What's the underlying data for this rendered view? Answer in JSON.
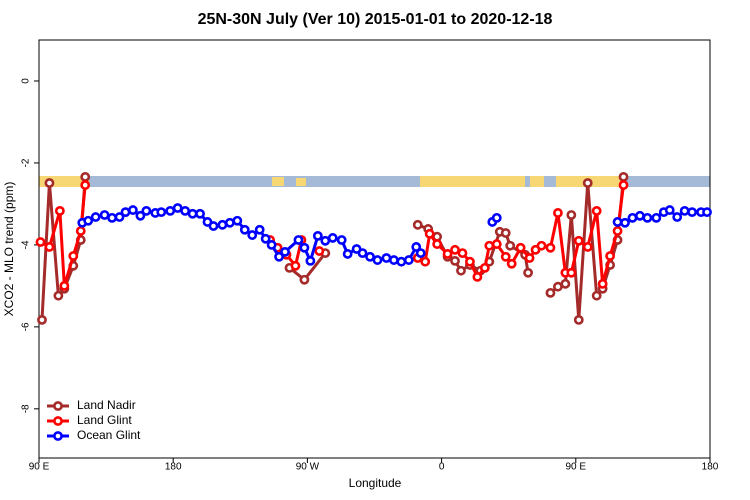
{
  "chart_data": {
    "type": "line",
    "title": "25N-30N July (Ver 10)   2015-01-01 to 2020-12-18",
    "x_label": "Longitude",
    "y_label": "XCO2 - MLO trend (ppm)",
    "xlim": [
      90,
      540
    ],
    "ylim": [
      -9.2,
      1
    ],
    "xticks": [
      {
        "value": 90,
        "label": "90 E"
      },
      180,
      {
        "value": 270,
        "label": "90 W"
      },
      {
        "value": 360,
        "label": "0"
      },
      {
        "value": 450,
        "label": "90 E"
      },
      {
        "value": 540,
        "label": "180"
      }
    ],
    "yticks": [
      0,
      -2,
      -4,
      -6,
      -8
    ],
    "legend": "bottom-left",
    "series": [
      {
        "name": "Land Nadir",
        "color": "#a52a2a",
        "x": [
          92,
          97,
          103,
          107,
          113,
          118,
          121,
          null,
          258,
          268,
          282,
          null,
          344,
          351,
          357,
          364,
          369,
          373,
          379,
          386,
          392,
          399,
          403,
          406,
          416,
          418,
          null,
          433,
          438,
          443,
          447,
          452,
          458,
          464,
          468,
          473,
          478,
          482
        ],
        "values": [
          -5.83,
          -2.49,
          -5.24,
          -5.07,
          -4.51,
          -3.88,
          -2.34,
          null,
          -4.56,
          -4.85,
          -4.2,
          null,
          -3.51,
          -3.61,
          -3.8,
          -4.29,
          -4.39,
          -4.63,
          -4.49,
          -4.63,
          -4.41,
          -3.68,
          -3.71,
          -4.02,
          -4.24,
          -4.68,
          null,
          -5.17,
          -5.02,
          -4.95,
          -3.27,
          -5.83,
          -2.49,
          -5.24,
          -5.07,
          -4.49,
          -3.88,
          -2.34
        ]
      },
      {
        "name": "Land Glint",
        "color": "#ff0000",
        "x": [
          91,
          97,
          104,
          107,
          113,
          118,
          121,
          null,
          245,
          250,
          256,
          262,
          266,
          null,
          278,
          null,
          344,
          349,
          352,
          357,
          364,
          369,
          374,
          379,
          384,
          389,
          392,
          397,
          403,
          407,
          413,
          419,
          423,
          427,
          433,
          438,
          443,
          447,
          452,
          458,
          464,
          468,
          473,
          478,
          482
        ],
        "values": [
          -3.93,
          -4.05,
          -3.17,
          -5.0,
          -4.27,
          -3.66,
          -2.54,
          null,
          -3.88,
          -4.07,
          -4.24,
          -4.51,
          -3.88,
          null,
          -4.15,
          null,
          -4.32,
          -4.41,
          -3.73,
          -3.98,
          -4.22,
          -4.12,
          -4.2,
          -4.41,
          -4.78,
          -4.56,
          -4.02,
          -3.98,
          -4.29,
          -4.46,
          -4.07,
          -4.32,
          -4.12,
          -4.02,
          -4.07,
          -3.22,
          -4.68,
          -4.68,
          -3.9,
          -4.05,
          -3.17,
          -4.95,
          -4.27,
          -3.66,
          -2.54
        ]
      },
      {
        "name": "Ocean Glint",
        "color": "#0000ff",
        "x": [
          119,
          123,
          128,
          134,
          139,
          144,
          148,
          153,
          158,
          162,
          168,
          172,
          178,
          183,
          188,
          193,
          198,
          203,
          207,
          213,
          218,
          223,
          228,
          233,
          238,
          242,
          246,
          251,
          255,
          264,
          268,
          272,
          277,
          282,
          287,
          293,
          297,
          303,
          307,
          312,
          317,
          323,
          328,
          333,
          338,
          343,
          346,
          null,
          394,
          397,
          null,
          478,
          483,
          488,
          493,
          498,
          504,
          509,
          513,
          518,
          523,
          528,
          534,
          538
        ],
        "values": [
          -3.46,
          -3.41,
          -3.32,
          -3.27,
          -3.34,
          -3.32,
          -3.2,
          -3.15,
          -3.29,
          -3.17,
          -3.22,
          -3.2,
          -3.17,
          -3.1,
          -3.17,
          -3.24,
          -3.24,
          -3.44,
          -3.54,
          -3.51,
          -3.46,
          -3.41,
          -3.63,
          -3.76,
          -3.63,
          -3.85,
          -4.0,
          -4.29,
          -4.17,
          -3.88,
          -4.07,
          -4.39,
          -3.78,
          -3.9,
          -3.83,
          -3.88,
          -4.22,
          -4.1,
          -4.2,
          -4.29,
          -4.37,
          -4.32,
          -4.37,
          -4.41,
          -4.37,
          -4.05,
          -4.2,
          null,
          -3.44,
          -3.34,
          null,
          -3.44,
          -3.46,
          -3.34,
          -3.29,
          -3.34,
          -3.34,
          -3.2,
          -3.15,
          -3.32,
          -3.17,
          -3.2,
          -3.2,
          -3.2
        ]
      }
    ]
  }
}
